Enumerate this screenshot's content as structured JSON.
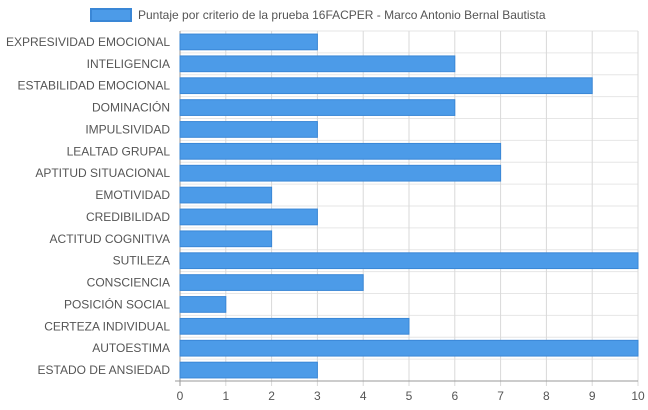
{
  "chart_data": {
    "type": "bar",
    "orientation": "horizontal",
    "title": "",
    "xlabel": "",
    "ylabel": "",
    "xlim": [
      0,
      10
    ],
    "x_ticks": [
      0,
      1,
      2,
      3,
      4,
      5,
      6,
      7,
      8,
      9,
      10
    ],
    "grid": true,
    "legend_placement": "top",
    "categories": [
      "EXPRESIVIDAD EMOCIONAL",
      "INTELIGENCIA",
      "ESTABILIDAD EMOCIONAL",
      "DOMINACIÓN",
      "IMPULSIVIDAD",
      "LEALTAD GRUPAL",
      "APTITUD SITUACIONAL",
      "EMOTIVIDAD",
      "CREDIBILIDAD",
      "ACTITUD COGNITIVA",
      "SUTILEZA",
      "CONSCIENCIA",
      "POSICIÓN SOCIAL",
      "CERTEZA INDIVIDUAL",
      "AUTOESTIMA",
      "ESTADO DE ANSIEDAD"
    ],
    "series": [
      {
        "name": "Puntaje por criterio de la prueba 16FACPER - Marco Antonio Bernal Bautista",
        "color": "#4c9be8",
        "border_color": "#3a87d6",
        "values": [
          3,
          6,
          9,
          6,
          3,
          7,
          7,
          2,
          3,
          2,
          10,
          4,
          1,
          5,
          10,
          3
        ]
      }
    ]
  }
}
